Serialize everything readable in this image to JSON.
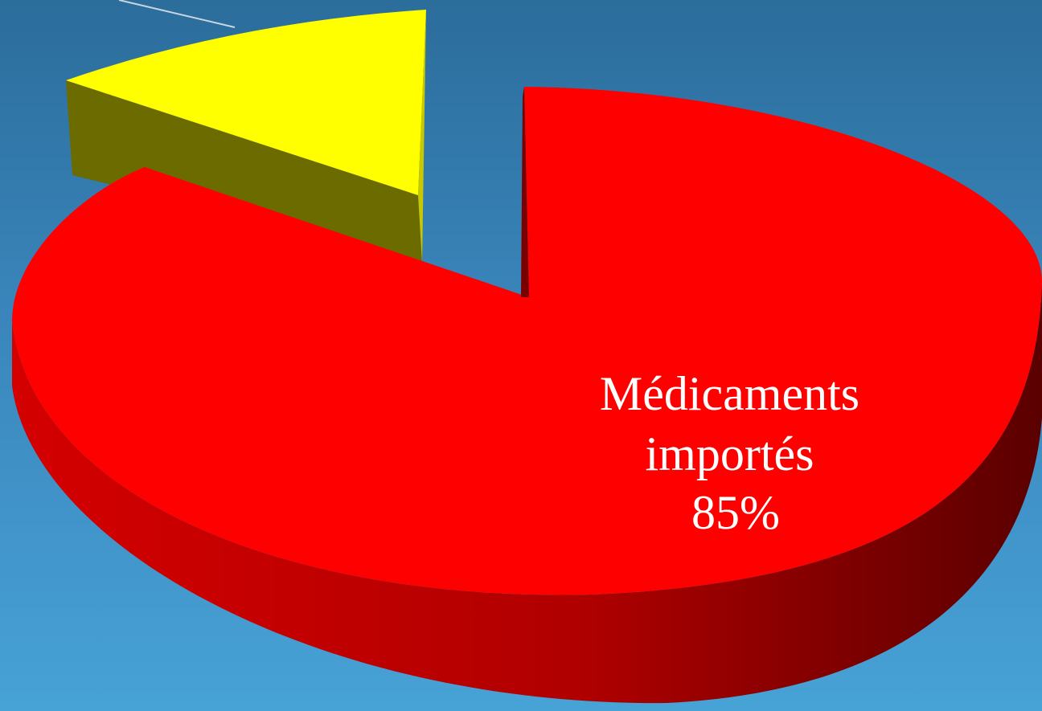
{
  "chart_data": {
    "type": "pie",
    "style": "3d-exploded",
    "slices": [
      {
        "label": "Médicaments importés",
        "value": 85,
        "value_label": "85%",
        "color": "#ff0000",
        "side_color": "#9e0000"
      },
      {
        "label": "",
        "value": 15,
        "value_label": "",
        "color": "#ffff00",
        "side_color": "#6b6b00"
      }
    ],
    "label_lines": [
      "Médicaments",
      "importés",
      "85%"
    ],
    "background": [
      "#2b6d9b",
      "#47a2d6"
    ]
  }
}
